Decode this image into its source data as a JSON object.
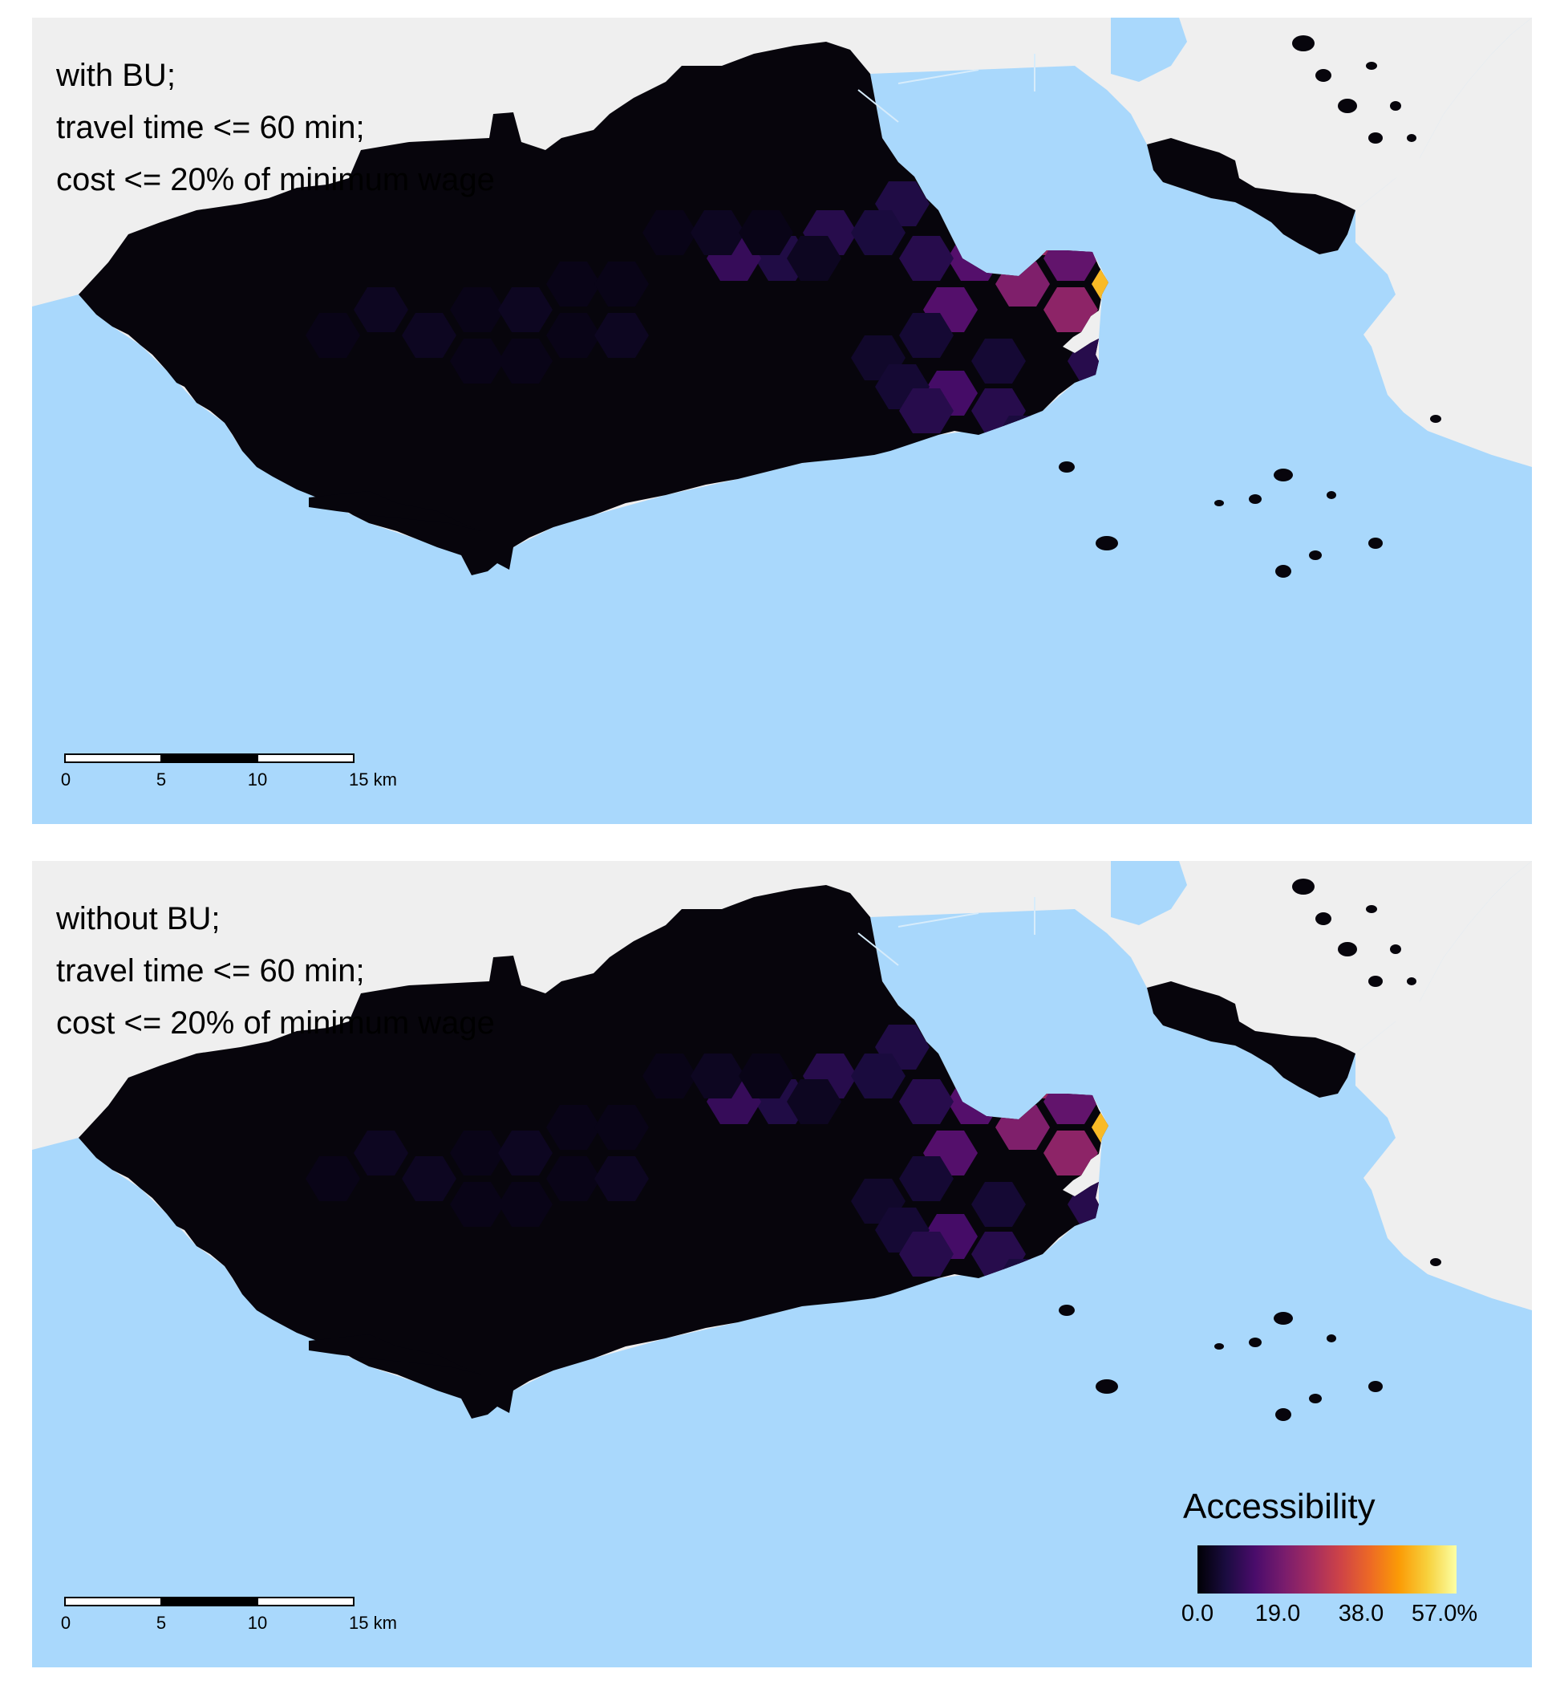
{
  "colors": {
    "sea": "#a9d8fc",
    "land_other": "#efefef",
    "city_base": "#07050c",
    "scale": [
      "#000004",
      "#1b0c41",
      "#4a0c6b",
      "#781c6d",
      "#a52c60",
      "#cf4446",
      "#ed6925",
      "#fb9b06",
      "#f7d13d",
      "#fcffa4"
    ]
  },
  "panels": [
    {
      "caption": [
        "with BU;",
        "travel time <= 60 min;",
        "cost <= 20% of minimum wage"
      ]
    },
    {
      "caption": [
        "without BU;",
        "travel time <= 60 min;",
        "cost <= 20% of minimum wage"
      ]
    }
  ],
  "scalebar": {
    "labels": [
      "0",
      "5",
      "10",
      "15 km"
    ]
  },
  "legend": {
    "title": "Accessibility",
    "labels": [
      "0.0",
      "19.0",
      "38.0",
      "57.0%"
    ],
    "min": 0,
    "max": 57
  },
  "hex_values": [
    {
      "v": 4.5
    },
    {
      "v": 5
    },
    {
      "v": 5.5
    },
    {
      "v": 4
    },
    {
      "v": 9
    },
    {
      "v": 20
    },
    {
      "v": 22
    },
    {
      "v": 16
    },
    {
      "v": 7
    },
    {
      "v": 24
    },
    {
      "v": 0.5
    },
    {
      "v": 18
    },
    {
      "v": 42
    },
    {
      "v": 14
    },
    {
      "v": 16
    },
    {
      "v": 52
    },
    {
      "v": 8
    },
    {
      "v": 20
    },
    {
      "v": 48
    },
    {
      "v": 44
    },
    {
      "v": 14
    },
    {
      "v": 22
    },
    {
      "v": 42
    },
    {
      "v": 57
    },
    {
      "v": 52
    },
    {
      "v": 50
    },
    {
      "v": 49
    },
    {
      "v": 17
    },
    {
      "v": 48
    },
    {
      "v": 54
    },
    {
      "v": 25
    },
    {
      "v": 1
    },
    {
      "v": 45
    },
    {
      "v": 7
    },
    {
      "v": 8
    },
    {
      "v": 5
    },
    {
      "v": 44
    },
    {
      "v": 8
    },
    {
      "v": 12
    },
    {
      "v": 11
    },
    {
      "v": 6
    },
    {
      "v": 5
    },
    {
      "v": 8
    },
    {
      "v": 7
    },
    {
      "v": 6
    },
    {
      "v": 9
    },
    {
      "v": 9
    },
    {
      "v": 5
    },
    {
      "v": 4
    },
    {
      "v": 5
    },
    {
      "v": 8
    },
    {
      "v": 8
    },
    {
      "v": 6
    },
    {
      "v": 7
    },
    {
      "v": 10
    },
    {
      "v": 3
    },
    {
      "v": 3
    },
    {
      "v": 2
    },
    {
      "v": 3
    },
    {
      "v": 2
    },
    {
      "v": 2
    },
    {
      "v": 2
    },
    {
      "v": 3
    },
    {
      "v": 2
    },
    {
      "v": 3
    },
    {
      "v": 2
    },
    {
      "v": 2
    },
    {
      "v": 3
    },
    {
      "v": 2
    },
    {
      "v": 2
    }
  ]
}
